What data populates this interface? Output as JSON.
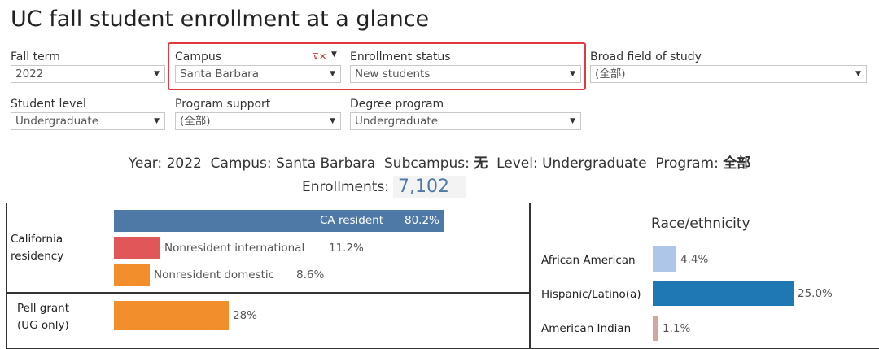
{
  "title": "UC fall student enrollment at a glance",
  "filters": {
    "fall_term": {
      "label": "Fall term",
      "value": "2022"
    },
    "campus": {
      "label": "Campus",
      "value": "Santa Barbara"
    },
    "enrollment_status": {
      "label": "Enrollment status",
      "value": "New students"
    },
    "broad_field": {
      "label": "Broad field of study",
      "value": "(全部)"
    },
    "student_level": {
      "label": "Student level",
      "value": "Undergraduate"
    },
    "program_support": {
      "label": "Program support",
      "value": "(全部)"
    },
    "degree_program": {
      "label": "Degree program",
      "value": "Undergraduate"
    }
  },
  "summary": {
    "year_label": "Year:",
    "year": "2022",
    "campus_label": "Campus:",
    "campus": "Santa Barbara",
    "subcampus_label": "Subcampus:",
    "subcampus": "无",
    "level_label": "Level:",
    "level": "Undergraduate",
    "program_label": "Program:",
    "program": "全部"
  },
  "enrollments": {
    "label": "Enrollments:",
    "value": "7,102"
  },
  "residency": {
    "label_line1": "California",
    "label_line2": "residency",
    "items": [
      {
        "name": "CA resident",
        "pct": "80.2%",
        "value": 80.2,
        "color": "#4e79a7"
      },
      {
        "name": "Nonresident international",
        "pct": "11.2%",
        "value": 11.2,
        "color": "#e15759"
      },
      {
        "name": "Nonresident domestic",
        "pct": "8.6%",
        "value": 8.6,
        "color": "#f28e2b"
      }
    ]
  },
  "pell": {
    "label_line1": "Pell grant",
    "label_line2": "(UG only)",
    "pct": "28%",
    "value": 28,
    "color": "#f28e2b"
  },
  "race": {
    "title": "Race/ethnicity",
    "items": [
      {
        "name": "African American",
        "pct": "4.4%",
        "value": 4.4,
        "color": "#aec7e8"
      },
      {
        "name": "Hispanic/Latino(a)",
        "pct": "25.0%",
        "value": 25.0,
        "color": "#1f77b4"
      },
      {
        "name": "American Indian",
        "pct": "1.1%",
        "value": 1.1,
        "color": "#d4a6a0"
      }
    ]
  }
}
